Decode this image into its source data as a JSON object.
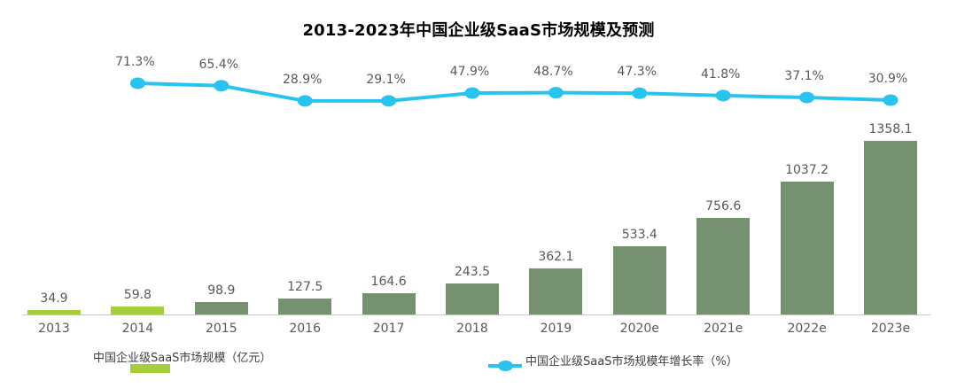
{
  "chart_data": {
    "type": "bar",
    "title": "2013-2023年中国企业级SaaS市场规模及预测",
    "categories": [
      "2013",
      "2014",
      "2015",
      "2016",
      "2017",
      "2018",
      "2019",
      "2020e",
      "2021e",
      "2022e",
      "2023e"
    ],
    "series": [
      {
        "name": "中国企业级SaaS市场规模（亿元）",
        "type": "bar",
        "values": [
          34.9,
          59.8,
          98.9,
          127.5,
          164.6,
          243.5,
          362.1,
          533.4,
          756.6,
          1037.2,
          1358.1
        ],
        "labels": [
          "34.9",
          "59.8",
          "98.9",
          "127.5",
          "164.6",
          "243.5",
          "362.1",
          "533.4",
          "756.6",
          "1037.2",
          "1358.1"
        ]
      },
      {
        "name": "中国企业级SaaS市场规模年增长率（%）",
        "type": "line",
        "start_category_index": 1,
        "values": [
          71.3,
          65.4,
          28.9,
          29.1,
          47.9,
          48.7,
          47.3,
          41.8,
          37.1,
          30.9
        ],
        "labels": [
          "71.3%",
          "65.4%",
          "28.9%",
          "29.1%",
          "47.9%",
          "48.7%",
          "47.3%",
          "41.8%",
          "37.1%",
          "30.9%"
        ]
      }
    ],
    "highlight_bar_count": 2,
    "colors": {
      "bar_highlight": "#A6CE3B",
      "bar_default": "#75916F",
      "line": "#29C3EF",
      "value_label": "#595959",
      "axis_line": "#C6C6C6",
      "title": "#000000"
    },
    "legend_position": "bottom",
    "grid": false,
    "value_axis_visible": false
  }
}
